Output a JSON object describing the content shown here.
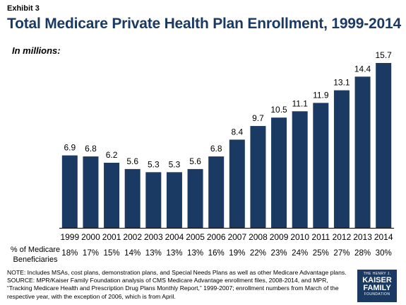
{
  "exhibit_label": "Exhibit 3",
  "chart_data": {
    "type": "bar",
    "title": "Total Medicare Private Health Plan Enrollment, 1999-2014",
    "unit_label": "In millions:",
    "categories": [
      "1999",
      "2000",
      "2001",
      "2002",
      "2003",
      "2004",
      "2005",
      "2006",
      "2007",
      "2008",
      "2009",
      "2010",
      "2011",
      "2012",
      "2013",
      "2014"
    ],
    "values": [
      6.9,
      6.8,
      6.2,
      5.6,
      5.3,
      5.3,
      5.6,
      6.8,
      8.4,
      9.7,
      10.5,
      11.1,
      11.9,
      13.1,
      14.4,
      15.7
    ],
    "value_labels": [
      "6.9",
      "6.8",
      "6.2",
      "5.6",
      "5.3",
      "5.3",
      "5.6",
      "6.8",
      "8.4",
      "9.7",
      "10.5",
      "11.1",
      "11.9",
      "13.1",
      "14.4",
      "15.7"
    ],
    "ylim": [
      0,
      15.7
    ],
    "grid": false,
    "bar_color": "#1a3a63",
    "secondary_row": {
      "label": "% of Medicare Beneficiaries",
      "values": [
        "18%",
        "17%",
        "15%",
        "14%",
        "13%",
        "13%",
        "13%",
        "16%",
        "19%",
        "22%",
        "23%",
        "24%",
        "25%",
        "27%",
        "28%",
        "30%"
      ]
    }
  },
  "notes": {
    "note": "NOTE:  Includes MSAs, cost plans, demonstration plans, and Special Needs Plans as well as other Medicare Advantage plans.",
    "source": "SOURCE:  MPR/Kaiser Family Foundation analysis of CMS Medicare Advantage enrollment files, 2008-2014, and MPR, “Tracking Medicare Health and Prescription Drug Plans Monthly Report,” 1999-2007; enrollment numbers from March of the respective year, with the exception of 2006, which is from April."
  },
  "logo": {
    "line1": "THE HENRY J.",
    "line2": "KAISER",
    "line3": "FAMILY",
    "line4": "FOUNDATION"
  }
}
